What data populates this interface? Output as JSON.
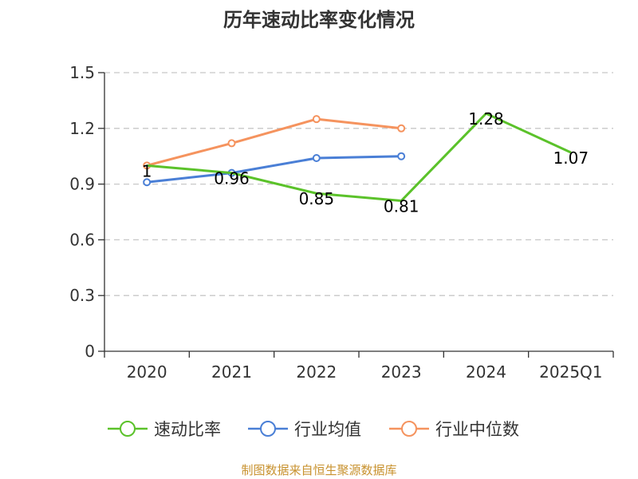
{
  "chart_data": {
    "type": "line",
    "title": "历年速动比率变化情况",
    "categories": [
      "2020",
      "2021",
      "2022",
      "2023",
      "2024",
      "2025Q1"
    ],
    "ylim": [
      0,
      1.5
    ],
    "yticks": [
      "0",
      "0.3",
      "0.6",
      "0.9",
      "1.2",
      "1.5"
    ],
    "grid": true,
    "legend_position": "bottom",
    "series": [
      {
        "name": "速动比率",
        "color": "#5bc22a",
        "values": [
          1,
          0.96,
          0.85,
          0.81,
          1.28,
          1.07
        ],
        "labels": [
          "1",
          "0.96",
          "0.85",
          "0.81",
          "1.28",
          "1.07"
        ],
        "markers": false
      },
      {
        "name": "行业均值",
        "color": "#4a7fd6",
        "values": [
          0.91,
          0.96,
          1.04,
          1.05,
          null,
          null
        ],
        "markers": true
      },
      {
        "name": "行业中位数",
        "color": "#f5935e",
        "values": [
          1.0,
          1.12,
          1.25,
          1.2,
          null,
          null
        ],
        "markers": true
      }
    ]
  },
  "source": "制图数据来自恒生聚源数据库"
}
